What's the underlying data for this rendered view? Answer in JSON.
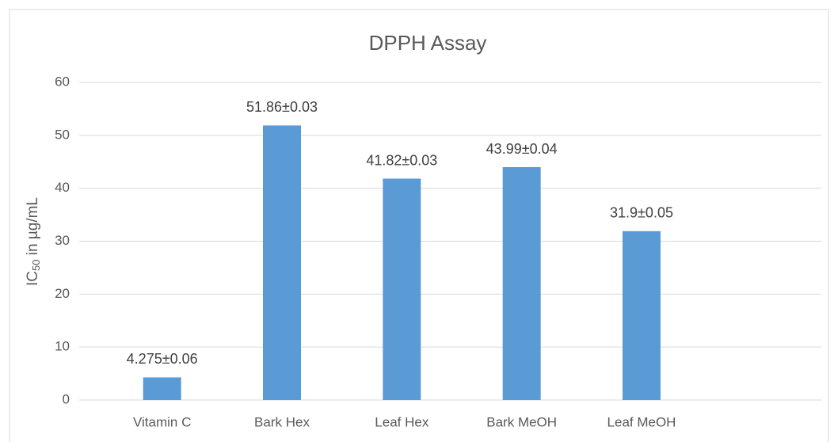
{
  "chart_data": {
    "type": "bar",
    "title": "DPPH Assay",
    "y_label": [
      "IC",
      "50",
      " in µg/mL"
    ],
    "categories": [
      "Vitamin C",
      "Bark Hex",
      "Leaf Hex",
      "Bark MeOH",
      "Leaf MeOH",
      null
    ],
    "values": [
      4.275,
      51.86,
      41.82,
      43.99,
      31.9,
      null
    ],
    "value_labels": [
      "4.275±0.06",
      "51.86±0.03",
      "41.82±0.03",
      "43.99±0.04",
      "31.9±0.05",
      null
    ],
    "color": "#5b9bd5",
    "ylim": [
      0,
      60
    ],
    "yticks": [
      0,
      10,
      20,
      30,
      40,
      50,
      60
    ],
    "grid": true
  }
}
